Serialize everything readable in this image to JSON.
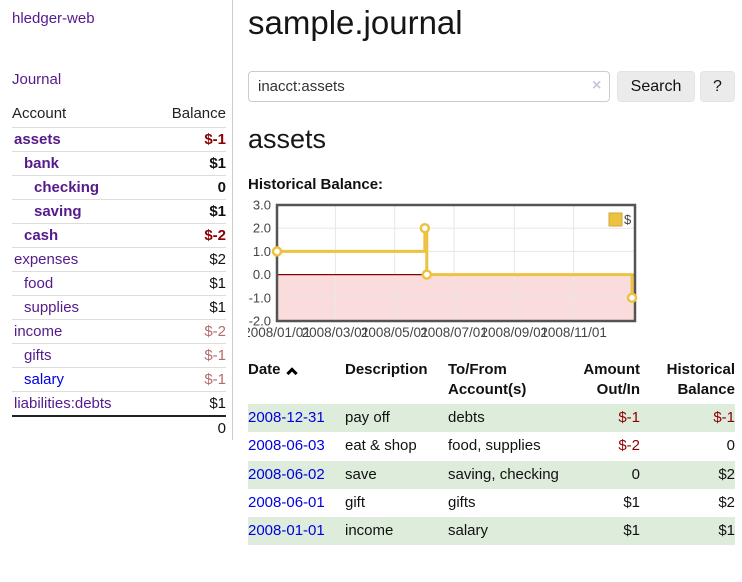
{
  "app": {
    "title": "hledger-web"
  },
  "sidebar": {
    "journal_link": "Journal",
    "accounts": {
      "headers": {
        "account": "Account",
        "balance": "Balance"
      },
      "rows": [
        {
          "name": "assets",
          "balance": "$-1",
          "indent": 1,
          "link_style": "purple",
          "bold": true,
          "balance_style": "bold-red"
        },
        {
          "name": "bank",
          "balance": "$1",
          "indent": 2,
          "link_style": "purple",
          "bold": true,
          "balance_style": "bold-black"
        },
        {
          "name": "checking",
          "balance": "0",
          "indent": 3,
          "link_style": "purple",
          "bold": true,
          "balance_style": "bold-black"
        },
        {
          "name": "saving",
          "balance": "$1",
          "indent": 3,
          "link_style": "purple",
          "bold": true,
          "balance_style": "bold-black"
        },
        {
          "name": "cash",
          "balance": "$-2",
          "indent": 2,
          "link_style": "purple",
          "bold": true,
          "balance_style": "bold-red"
        },
        {
          "name": "expenses",
          "balance": "$2",
          "indent": 1,
          "link_style": "purple",
          "bold": false,
          "balance_style": "plain"
        },
        {
          "name": "food",
          "balance": "$1",
          "indent": 2,
          "link_style": "purple",
          "bold": false,
          "balance_style": "plain"
        },
        {
          "name": "supplies",
          "balance": "$1",
          "indent": 2,
          "link_style": "purple",
          "bold": false,
          "balance_style": "plain"
        },
        {
          "name": "income",
          "balance": "$-2",
          "indent": 1,
          "link_style": "purple",
          "bold": false,
          "balance_style": "dim-red"
        },
        {
          "name": "gifts",
          "balance": "$-1",
          "indent": 2,
          "link_style": "purple",
          "bold": false,
          "balance_style": "dim-red"
        },
        {
          "name": "salary",
          "balance": "$-1",
          "indent": 2,
          "link_style": "blue",
          "bold": false,
          "balance_style": "dim-red"
        },
        {
          "name": "liabilities:debts",
          "balance": "$1",
          "indent": 1,
          "link_style": "purple",
          "bold": false,
          "balance_style": "plain"
        }
      ],
      "total": "0"
    }
  },
  "main": {
    "title": "sample.journal",
    "search": {
      "value": "inacct:assets",
      "clear_icon": "×",
      "button_label": "Search",
      "help_label": "?"
    },
    "account_heading": "assets",
    "chart_label": "Historical Balance:"
  },
  "chart_data": {
    "type": "line",
    "step": true,
    "title": "Historical Balance",
    "series": [
      {
        "name": "$",
        "color": "#edc240",
        "points": [
          [
            "2008-01-01",
            1
          ],
          [
            "2008-06-01",
            2
          ],
          [
            "2008-06-03",
            0
          ],
          [
            "2008-12-31",
            -1
          ]
        ]
      }
    ],
    "x_ticks": [
      "2008/01/01",
      "2008/03/01",
      "2008/05/01",
      "2008/07/01",
      "2008/09/01",
      "2008/11/01"
    ],
    "y_ticks": [
      "3.0",
      "2.0",
      "1.0",
      "0.0",
      "-1.0",
      "-2.0"
    ],
    "ylim": [
      -2,
      3
    ],
    "x_range": [
      "2008-01-01",
      "2008-12-31"
    ],
    "grid": true,
    "legend": {
      "label": "$",
      "position": "top-right"
    },
    "zero_line_color": "#8b0000",
    "negative_region_color": "#fbdcdc"
  },
  "register": {
    "headers": {
      "date": "Date",
      "description": "Description",
      "accounts": "To/From Account(s)",
      "amount": "Amount Out/In",
      "balance": "Historical Balance"
    },
    "rows": [
      {
        "date": "2008-12-31",
        "description": "pay off",
        "accounts": "debts",
        "amount": "$-1",
        "amount_neg": true,
        "balance": "$-1",
        "balance_neg": true,
        "shaded": true
      },
      {
        "date": "2008-06-03",
        "description": "eat & shop",
        "accounts": "food, supplies",
        "amount": "$-2",
        "amount_neg": true,
        "balance": "0",
        "balance_neg": false,
        "shaded": false
      },
      {
        "date": "2008-06-02",
        "description": "save",
        "accounts": "saving, checking",
        "amount": "0",
        "amount_neg": false,
        "balance": "$2",
        "balance_neg": false,
        "shaded": true
      },
      {
        "date": "2008-06-01",
        "description": "gift",
        "accounts": "gifts",
        "amount": "$1",
        "amount_neg": false,
        "balance": "$2",
        "balance_neg": false,
        "shaded": false
      },
      {
        "date": "2008-01-01",
        "description": "income",
        "accounts": "salary",
        "amount": "$1",
        "amount_neg": false,
        "balance": "$1",
        "balance_neg": false,
        "shaded": true
      }
    ]
  }
}
